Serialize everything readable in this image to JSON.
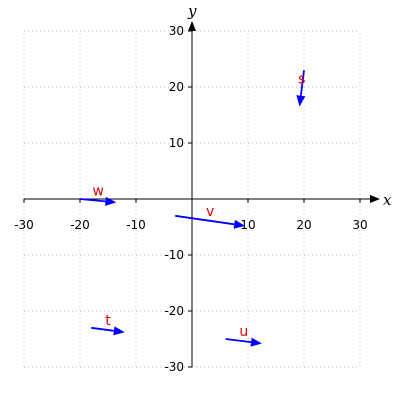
{
  "chart_data": {
    "type": "vector-field",
    "xlabel": "x",
    "ylabel": "y",
    "xlim": [
      -30,
      30
    ],
    "ylim": [
      -30,
      30
    ],
    "ticks": [
      -30,
      -20,
      -10,
      10,
      20,
      30
    ],
    "grid": true,
    "grid_style": "dotted",
    "vector_color": "#0000ff",
    "label_color": "#dd0000",
    "vectors": [
      {
        "name": "s",
        "x": 20,
        "y": 23,
        "dx": -0.8,
        "dy": -6.5
      },
      {
        "name": "w",
        "x": -20,
        "y": 0,
        "dx": 6.5,
        "dy": -0.6
      },
      {
        "name": "v",
        "x": -3,
        "y": -3,
        "dx": 12.5,
        "dy": -1.8
      },
      {
        "name": "t",
        "x": -18,
        "y": -23,
        "dx": 6,
        "dy": -0.8
      },
      {
        "name": "u",
        "x": 6,
        "y": -25,
        "dx": 6.5,
        "dy": -0.8
      }
    ]
  }
}
